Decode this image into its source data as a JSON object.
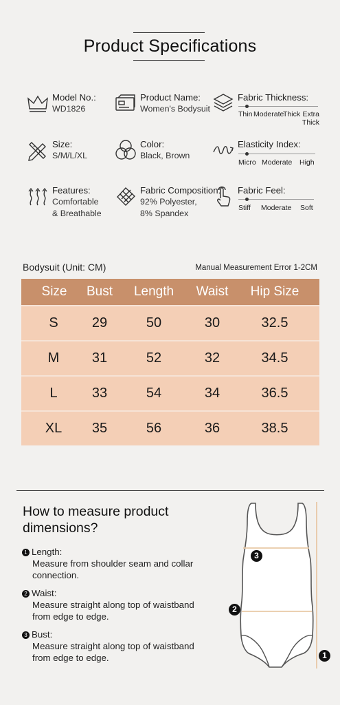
{
  "header": {
    "title": "Product Specifications"
  },
  "specs": {
    "model": {
      "label": "Model No.:",
      "value": "WD1826",
      "icon": "crown-icon"
    },
    "name": {
      "label": "Product Name:",
      "value": "Women's Bodysuit",
      "icon": "card-icon"
    },
    "thickness": {
      "label": "Fabric Thickness:",
      "icon": "layers-icon",
      "scale": [
        "Thin",
        "Moderate",
        "Thick",
        "Extra Thick"
      ],
      "level": "Thin"
    },
    "size": {
      "label": "Size:",
      "value": "S/M/L/XL",
      "icon": "ruler-pencil-icon"
    },
    "color": {
      "label": "Color:",
      "value": "Black, Brown",
      "icon": "color-circles-icon"
    },
    "elasticity": {
      "label": "Elasticity Index:",
      "icon": "spring-icon",
      "scale": [
        "Micro",
        "Moderate",
        "High"
      ],
      "level": "Micro"
    },
    "features": {
      "label": "Features:",
      "value1": "Comfortable",
      "value2": "& Breathable",
      "icon": "breathable-arrows-icon"
    },
    "composition": {
      "label": "Fabric Composition:",
      "value1": "92% Polyester,",
      "value2": "8% Spandex",
      "icon": "fabric-swatch-icon"
    },
    "feel": {
      "label": "Fabric Feel:",
      "icon": "hand-touch-icon",
      "scale": [
        "Stiff",
        "Moderate",
        "Soft"
      ],
      "level": "Stiff"
    }
  },
  "size_table": {
    "caption": "Bodysuit (Unit: CM)",
    "note": "Manual Measurement Error 1-2CM",
    "columns": [
      "Size",
      "Bust",
      "Length",
      "Waist",
      "Hip Size"
    ],
    "rows": [
      [
        "S",
        "29",
        "50",
        "30",
        "32.5"
      ],
      [
        "M",
        "31",
        "52",
        "32",
        "34.5"
      ],
      [
        "L",
        "33",
        "54",
        "34",
        "36.5"
      ],
      [
        "XL",
        "35",
        "56",
        "36",
        "38.5"
      ]
    ],
    "colors": {
      "header": "#c8906b",
      "row": "#f4cfb6"
    }
  },
  "measure": {
    "title": "How to measure product dimensions?",
    "steps": [
      {
        "num": "1",
        "label": "Length:",
        "desc": "Measure from shoulder seam and collar connection."
      },
      {
        "num": "2",
        "label": "Waist:",
        "desc": "Measure straight along top of waistband from edge to edge."
      },
      {
        "num": "3",
        "label": "Bust:",
        "desc": "Measure straight along top of waistband from edge to edge."
      }
    ],
    "badges": [
      "1",
      "2",
      "3"
    ],
    "line_color": "#e8c9a6"
  }
}
